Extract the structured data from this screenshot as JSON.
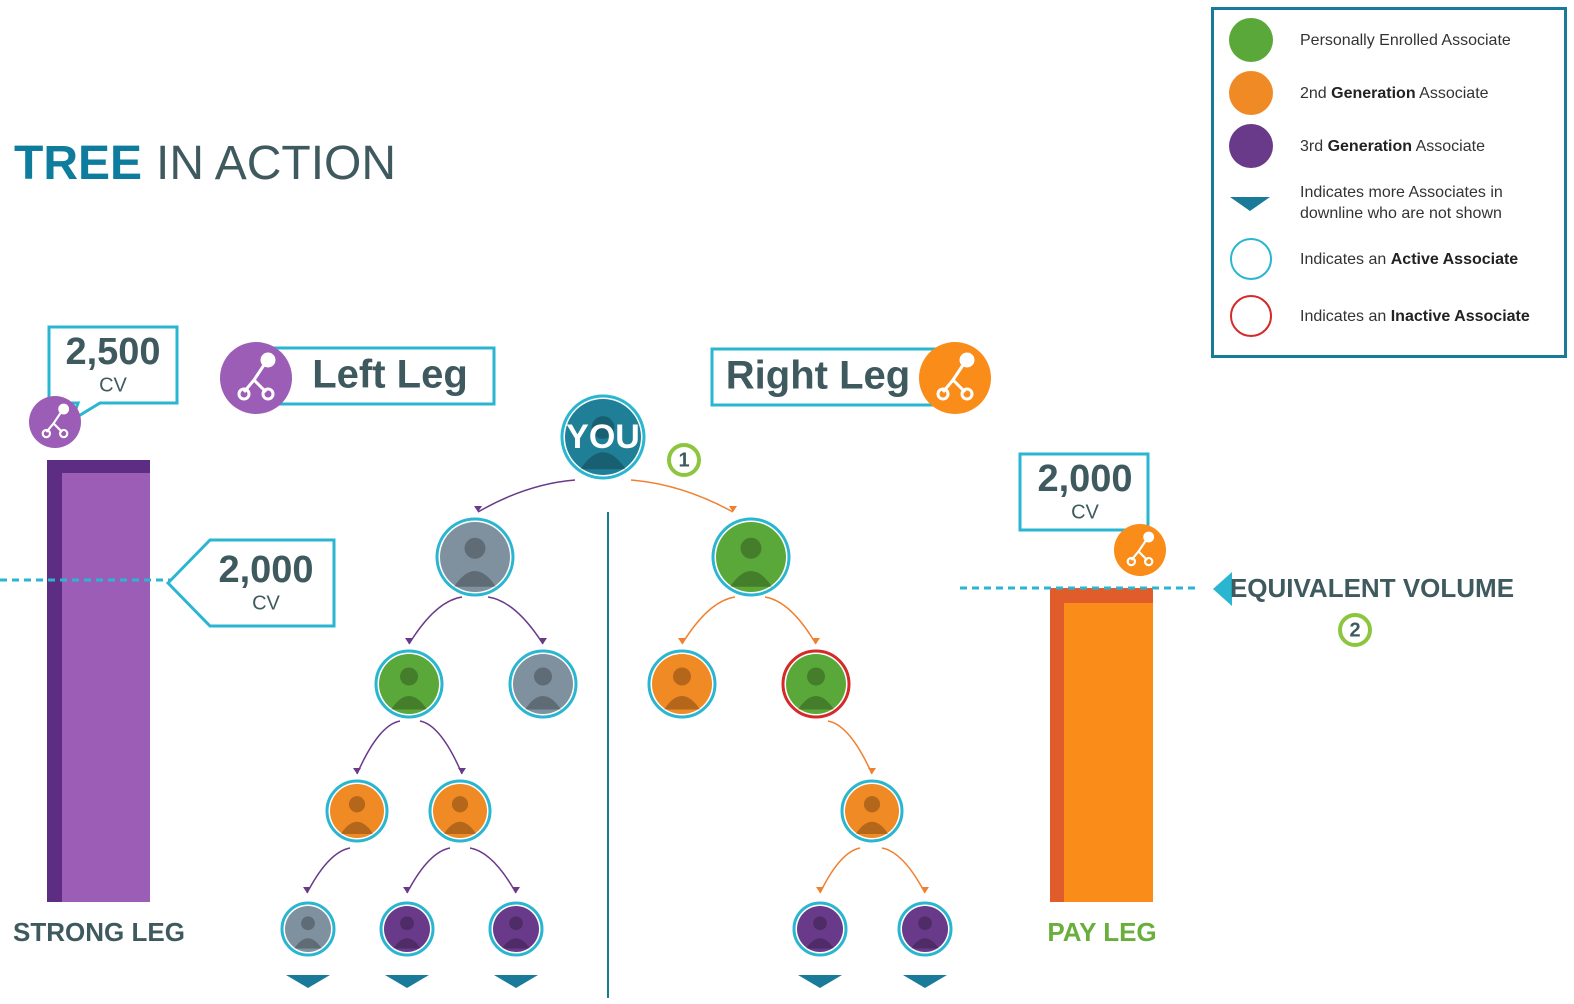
{
  "title": {
    "bold": "TREE",
    "rest": "IN ACTION"
  },
  "legend": {
    "items": [
      {
        "parts": [
          {
            "text": "Personally Enrolled Associate"
          }
        ]
      },
      {
        "parts": [
          {
            "text": "2nd "
          },
          {
            "text": "Generation",
            "bold": true
          },
          {
            "text": " Associate"
          }
        ]
      },
      {
        "parts": [
          {
            "text": "3rd "
          },
          {
            "text": "Generation",
            "bold": true
          },
          {
            "text": " Associate"
          }
        ]
      },
      {
        "parts": [
          {
            "text": "Indicates more Associates in downline who are not shown"
          }
        ]
      },
      {
        "parts": [
          {
            "text": "Indicates an "
          },
          {
            "text": "Active Associate",
            "bold": true
          }
        ]
      },
      {
        "parts": [
          {
            "text": "Indicates an "
          },
          {
            "text": "Inactive Associate",
            "bold": true
          }
        ]
      }
    ]
  },
  "left_leg": {
    "label": "Left Leg"
  },
  "right_leg": {
    "label": "Right Leg"
  },
  "you": "YOU",
  "steps": [
    "1",
    "2"
  ],
  "strong_leg": {
    "value": "2,500",
    "unit": "CV",
    "label": "STRONG LEG"
  },
  "left_callout": {
    "value": "2,000",
    "unit": "CV"
  },
  "pay_leg": {
    "value": "2,000",
    "unit": "CV",
    "label": "PAY LEG"
  },
  "equivalent": "EQUIVALENT VOLUME"
}
